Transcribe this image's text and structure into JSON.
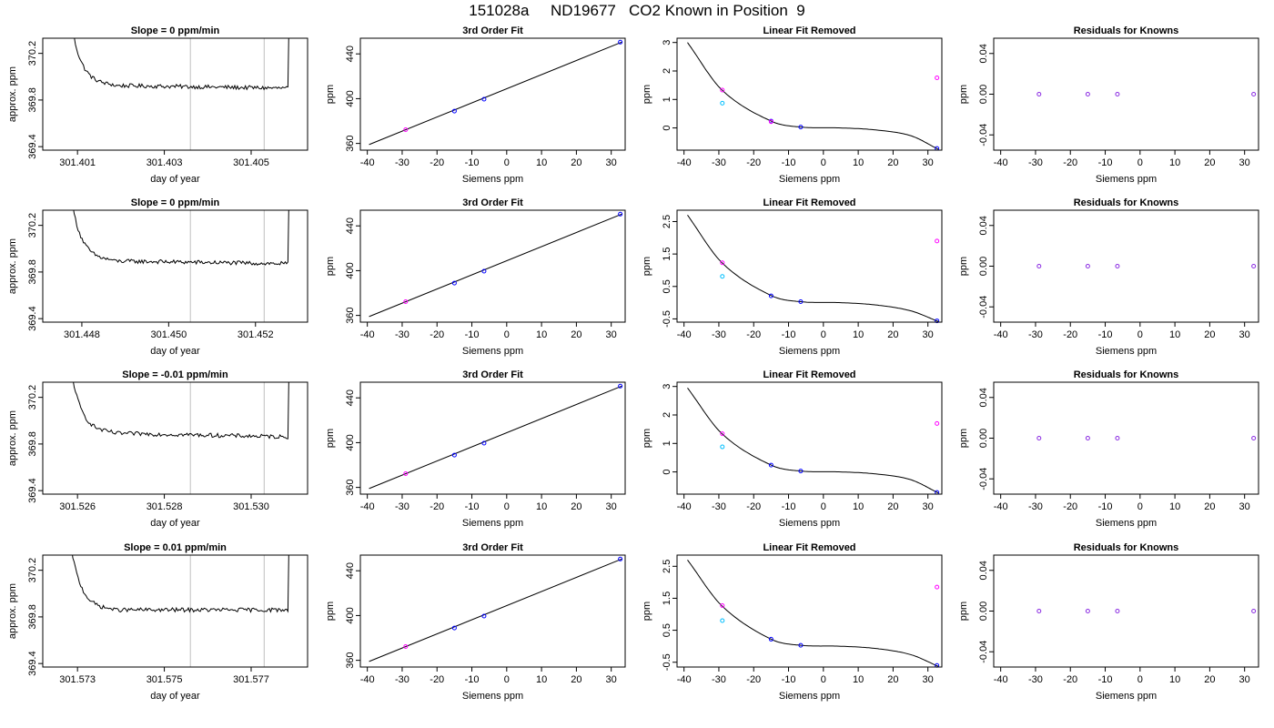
{
  "figure": {
    "title": "151028a     ND19677   CO2 Known in Position  9",
    "colors": {
      "line": "#000000",
      "vline": "#bebebe",
      "unknown": "#00bfff",
      "known_a": "#ff00ff",
      "known_b": "#0000ff",
      "residual": "#8a2be2"
    }
  },
  "chart_data": [
    {
      "type": "line",
      "row": 0,
      "col": 0,
      "title": "Slope =  0  ppm/min",
      "xlabel": "day of year",
      "ylabel": "approx. ppm",
      "xlim": [
        301.4002,
        301.4063
      ],
      "ylim": [
        369.37,
        370.33
      ],
      "xticks": [
        "301.401",
        "301.403",
        "301.405"
      ],
      "xtick_values": [
        301.401,
        301.403,
        301.405
      ],
      "yticks": [
        "369.4",
        "369.8",
        "370.2"
      ],
      "ytick_values": [
        369.4,
        369.8,
        370.2
      ],
      "vlines": [
        301.4036,
        301.4053
      ],
      "trace_x": [
        301.4008,
        301.406
      ],
      "trace_level": [
        369.93,
        369.9
      ]
    },
    {
      "type": "line",
      "row": 1,
      "col": 0,
      "title": "Slope =  0  ppm/min",
      "xlabel": "day of year",
      "ylabel": "approx. ppm",
      "xlim": [
        301.4471,
        301.4532
      ],
      "ylim": [
        369.37,
        370.33
      ],
      "xticks": [
        "301.448",
        "301.450",
        "301.452"
      ],
      "xtick_values": [
        301.448,
        301.45,
        301.452
      ],
      "yticks": [
        "369.4",
        "369.8",
        "370.2"
      ],
      "ytick_values": [
        369.4,
        369.8,
        370.2
      ],
      "vlines": [
        301.4505,
        301.4522
      ],
      "trace_x": [
        301.4477,
        301.4529
      ],
      "trace_level": [
        369.9,
        369.87
      ]
    },
    {
      "type": "line",
      "row": 2,
      "col": 0,
      "title": "Slope =  -0.01  ppm/min",
      "xlabel": "day of year",
      "ylabel": "approx. ppm",
      "xlim": [
        301.5252,
        301.5313
      ],
      "ylim": [
        369.37,
        370.33
      ],
      "xticks": [
        "301.526",
        "301.528",
        "301.530"
      ],
      "xtick_values": [
        301.526,
        301.528,
        301.53
      ],
      "yticks": [
        "369.4",
        "369.8",
        "370.2"
      ],
      "ytick_values": [
        369.4,
        369.8,
        370.2
      ],
      "vlines": [
        301.5286,
        301.5303
      ],
      "trace_x": [
        301.5258,
        301.531
      ],
      "trace_level": [
        369.9,
        369.86
      ]
    },
    {
      "type": "line",
      "row": 3,
      "col": 0,
      "title": "Slope =  0.01  ppm/min",
      "xlabel": "day of year",
      "ylabel": "approx. ppm",
      "xlim": [
        301.5722,
        301.5783
      ],
      "ylim": [
        369.37,
        370.33
      ],
      "xticks": [
        "301.573",
        "301.575",
        "301.577"
      ],
      "xtick_values": [
        301.573,
        301.575,
        301.577
      ],
      "yticks": [
        "369.4",
        "369.8",
        "370.2"
      ],
      "ytick_values": [
        369.4,
        369.8,
        370.2
      ],
      "vlines": [
        301.5756,
        301.5773
      ],
      "trace_x": [
        301.5728,
        301.578
      ],
      "trace_level": [
        369.86,
        369.86
      ]
    },
    {
      "type": "scatter",
      "row": 0,
      "col": 1,
      "title": "3rd Order Fit",
      "xlabel": "Siemens ppm",
      "ylabel": "ppm",
      "xlim": [
        -42,
        34
      ],
      "ylim": [
        354,
        454
      ],
      "xticks": [
        "-40",
        "-30",
        "-20",
        "-10",
        "0",
        "10",
        "20",
        "30"
      ],
      "xtick_values": [
        -40,
        -30,
        -20,
        -10,
        0,
        10,
        20,
        30
      ],
      "yticks": [
        "360",
        "400",
        "440"
      ],
      "ytick_values": [
        360,
        400,
        440
      ],
      "fit_x": [
        -39.5,
        33
      ],
      "fit_y": [
        359,
        450.5
      ],
      "points": [
        {
          "x": -29,
          "y": 372.3,
          "color": "known_a"
        },
        {
          "x": -15,
          "y": 388.9,
          "color": "known_b"
        },
        {
          "x": -6.5,
          "y": 399.5,
          "color": "known_b"
        },
        {
          "x": 32.6,
          "y": 450.5,
          "color": "known_b"
        }
      ]
    },
    {
      "type": "scatter",
      "row": 1,
      "col": 1,
      "title": "3rd Order Fit",
      "xlabel": "Siemens ppm",
      "ylabel": "ppm",
      "xlim": [
        -42,
        34
      ],
      "ylim": [
        354,
        454
      ],
      "xticks": [
        "-40",
        "-30",
        "-20",
        "-10",
        "0",
        "10",
        "20",
        "30"
      ],
      "xtick_values": [
        -40,
        -30,
        -20,
        -10,
        0,
        10,
        20,
        30
      ],
      "yticks": [
        "360",
        "400",
        "440"
      ],
      "ytick_values": [
        360,
        400,
        440
      ],
      "fit_x": [
        -39.5,
        33
      ],
      "fit_y": [
        359,
        450.5
      ],
      "points": [
        {
          "x": -29,
          "y": 372.3,
          "color": "known_a"
        },
        {
          "x": -15,
          "y": 388.9,
          "color": "known_b"
        },
        {
          "x": -6.5,
          "y": 399.5,
          "color": "known_b"
        },
        {
          "x": 32.6,
          "y": 450.5,
          "color": "known_b"
        }
      ]
    },
    {
      "type": "scatter",
      "row": 2,
      "col": 1,
      "title": "3rd Order Fit",
      "xlabel": "Siemens ppm",
      "ylabel": "ppm",
      "xlim": [
        -42,
        34
      ],
      "ylim": [
        354,
        454
      ],
      "xticks": [
        "-40",
        "-30",
        "-20",
        "-10",
        "0",
        "10",
        "20",
        "30"
      ],
      "xtick_values": [
        -40,
        -30,
        -20,
        -10,
        0,
        10,
        20,
        30
      ],
      "yticks": [
        "360",
        "400",
        "440"
      ],
      "ytick_values": [
        360,
        400,
        440
      ],
      "fit_x": [
        -39.5,
        33
      ],
      "fit_y": [
        359,
        450.5
      ],
      "points": [
        {
          "x": -29,
          "y": 372.3,
          "color": "known_a"
        },
        {
          "x": -15,
          "y": 388.9,
          "color": "known_b"
        },
        {
          "x": -6.5,
          "y": 399.5,
          "color": "known_b"
        },
        {
          "x": 32.6,
          "y": 450.5,
          "color": "known_b"
        }
      ]
    },
    {
      "type": "scatter",
      "row": 3,
      "col": 1,
      "title": "3rd Order Fit",
      "xlabel": "Siemens ppm",
      "ylabel": "ppm",
      "xlim": [
        -42,
        34
      ],
      "ylim": [
        354,
        454
      ],
      "xticks": [
        "-40",
        "-30",
        "-20",
        "-10",
        "0",
        "10",
        "20",
        "30"
      ],
      "xtick_values": [
        -40,
        -30,
        -20,
        -10,
        0,
        10,
        20,
        30
      ],
      "yticks": [
        "360",
        "400",
        "440"
      ],
      "ytick_values": [
        360,
        400,
        440
      ],
      "fit_x": [
        -39.5,
        33
      ],
      "fit_y": [
        359,
        450.5
      ],
      "points": [
        {
          "x": -29,
          "y": 372.3,
          "color": "known_a"
        },
        {
          "x": -15,
          "y": 388.9,
          "color": "known_b"
        },
        {
          "x": -6.5,
          "y": 399.5,
          "color": "known_b"
        },
        {
          "x": 32.6,
          "y": 450.5,
          "color": "known_b"
        }
      ]
    },
    {
      "type": "scatter",
      "row": 0,
      "col": 2,
      "title": "Linear Fit Removed",
      "xlabel": "Siemens ppm",
      "ylabel": "ppm",
      "xlim": [
        -42,
        34
      ],
      "ylim": [
        -0.78,
        3.15
      ],
      "xticks": [
        "-40",
        "-30",
        "-20",
        "-10",
        "0",
        "10",
        "20",
        "30"
      ],
      "xtick_values": [
        -40,
        -30,
        -20,
        -10,
        0,
        10,
        20,
        30
      ],
      "yticks": [
        "0",
        "1",
        "2",
        "3"
      ],
      "ytick_values": [
        0,
        1,
        2,
        3
      ],
      "curve_knots": [
        [
          -39,
          3.0
        ],
        [
          -29,
          1.32
        ],
        [
          -15,
          0.24
        ],
        [
          -6.5,
          0.03
        ],
        [
          5,
          0.0
        ],
        [
          15,
          -0.07
        ],
        [
          25,
          -0.27
        ],
        [
          33,
          -0.75
        ]
      ],
      "points": [
        {
          "x": -29,
          "y": 1.33,
          "color": "known_a"
        },
        {
          "x": -29,
          "y": 0.87,
          "color": "unknown"
        },
        {
          "x": -15,
          "y": 0.24,
          "color": "known_b"
        },
        {
          "x": -15,
          "y": 0.22,
          "color": "known_a"
        },
        {
          "x": -6.5,
          "y": 0.03,
          "color": "known_b"
        },
        {
          "x": 32.6,
          "y": -0.72,
          "color": "known_b"
        },
        {
          "x": 32.6,
          "y": 1.76,
          "color": "known_a"
        }
      ]
    },
    {
      "type": "scatter",
      "row": 1,
      "col": 2,
      "title": "Linear Fit Removed",
      "xlabel": "Siemens ppm",
      "ylabel": "ppm",
      "xlim": [
        -42,
        34
      ],
      "ylim": [
        -0.6,
        2.85
      ],
      "xticks": [
        "-40",
        "-30",
        "-20",
        "-10",
        "0",
        "10",
        "20",
        "30"
      ],
      "xtick_values": [
        -40,
        -30,
        -20,
        -10,
        0,
        10,
        20,
        30
      ],
      "yticks": [
        "-0.5",
        "0.5",
        "1.5",
        "2.5"
      ],
      "ytick_values": [
        -0.5,
        0.5,
        1.5,
        2.5
      ],
      "curve_knots": [
        [
          -39,
          2.7
        ],
        [
          -29,
          1.22
        ],
        [
          -15,
          0.22
        ],
        [
          -6.5,
          0.03
        ],
        [
          5,
          0.0
        ],
        [
          15,
          -0.07
        ],
        [
          25,
          -0.25
        ],
        [
          33,
          -0.58
        ]
      ],
      "points": [
        {
          "x": -29,
          "y": 1.23,
          "color": "known_a"
        },
        {
          "x": -29,
          "y": 0.81,
          "color": "unknown"
        },
        {
          "x": -15,
          "y": 0.21,
          "color": "known_b"
        },
        {
          "x": -6.5,
          "y": 0.03,
          "color": "known_b"
        },
        {
          "x": 32.6,
          "y": -0.56,
          "color": "known_b"
        },
        {
          "x": 32.6,
          "y": 1.9,
          "color": "known_a"
        }
      ]
    },
    {
      "type": "scatter",
      "row": 2,
      "col": 2,
      "title": "Linear Fit Removed",
      "xlabel": "Siemens ppm",
      "ylabel": "ppm",
      "xlim": [
        -42,
        34
      ],
      "ylim": [
        -0.78,
        3.15
      ],
      "xticks": [
        "-40",
        "-30",
        "-20",
        "-10",
        "0",
        "10",
        "20",
        "30"
      ],
      "xtick_values": [
        -40,
        -30,
        -20,
        -10,
        0,
        10,
        20,
        30
      ],
      "yticks": [
        "0",
        "1",
        "2",
        "3"
      ],
      "ytick_values": [
        0,
        1,
        2,
        3
      ],
      "curve_knots": [
        [
          -39,
          2.95
        ],
        [
          -29,
          1.33
        ],
        [
          -15,
          0.24
        ],
        [
          -6.5,
          0.03
        ],
        [
          5,
          0.0
        ],
        [
          15,
          -0.07
        ],
        [
          25,
          -0.27
        ],
        [
          33,
          -0.74
        ]
      ],
      "points": [
        {
          "x": -29,
          "y": 1.34,
          "color": "known_a"
        },
        {
          "x": -29,
          "y": 0.88,
          "color": "unknown"
        },
        {
          "x": -15,
          "y": 0.24,
          "color": "known_b"
        },
        {
          "x": -6.5,
          "y": 0.03,
          "color": "known_b"
        },
        {
          "x": 32.6,
          "y": -0.72,
          "color": "known_b"
        },
        {
          "x": 32.6,
          "y": 1.7,
          "color": "known_a"
        }
      ]
    },
    {
      "type": "scatter",
      "row": 3,
      "col": 2,
      "title": "Linear Fit Removed",
      "xlabel": "Siemens ppm",
      "ylabel": "ppm",
      "xlim": [
        -42,
        34
      ],
      "ylim": [
        -0.65,
        2.85
      ],
      "xticks": [
        "-40",
        "-30",
        "-20",
        "-10",
        "0",
        "10",
        "20",
        "30"
      ],
      "xtick_values": [
        -40,
        -30,
        -20,
        -10,
        0,
        10,
        20,
        30
      ],
      "yticks": [
        "-0.5",
        "0.5",
        "1.5",
        "2.5"
      ],
      "ytick_values": [
        -0.5,
        0.5,
        1.5,
        2.5
      ],
      "curve_knots": [
        [
          -39,
          2.7
        ],
        [
          -29,
          1.25
        ],
        [
          -15,
          0.22
        ],
        [
          -6.5,
          0.03
        ],
        [
          5,
          0.0
        ],
        [
          15,
          -0.07
        ],
        [
          25,
          -0.26
        ],
        [
          33,
          -0.63
        ]
      ],
      "points": [
        {
          "x": -29,
          "y": 1.27,
          "color": "known_a"
        },
        {
          "x": -29,
          "y": 0.8,
          "color": "unknown"
        },
        {
          "x": -15,
          "y": 0.22,
          "color": "known_b"
        },
        {
          "x": -6.5,
          "y": 0.03,
          "color": "known_b"
        },
        {
          "x": 32.6,
          "y": -0.6,
          "color": "known_b"
        },
        {
          "x": 32.6,
          "y": 1.85,
          "color": "known_a"
        }
      ]
    },
    {
      "type": "scatter",
      "row": 0,
      "col": 3,
      "title": "Residuals for Knowns",
      "xlabel": "Siemens ppm",
      "ylabel": "ppm",
      "xlim": [
        -42,
        34
      ],
      "ylim": [
        -0.055,
        0.055
      ],
      "xticks": [
        "-40",
        "-30",
        "-20",
        "-10",
        "0",
        "10",
        "20",
        "30"
      ],
      "xtick_values": [
        -40,
        -30,
        -20,
        -10,
        0,
        10,
        20,
        30
      ],
      "yticks": [
        "-0.04",
        "0.00",
        "0.04"
      ],
      "ytick_values": [
        -0.04,
        0,
        0.04
      ],
      "points": [
        {
          "x": -29,
          "y": 0,
          "color": "residual"
        },
        {
          "x": -15,
          "y": 0,
          "color": "residual"
        },
        {
          "x": -6.5,
          "y": 0,
          "color": "residual"
        },
        {
          "x": 32.6,
          "y": 0,
          "color": "residual"
        }
      ]
    },
    {
      "type": "scatter",
      "row": 1,
      "col": 3,
      "title": "Residuals for Knowns",
      "xlabel": "Siemens ppm",
      "ylabel": "ppm",
      "xlim": [
        -42,
        34
      ],
      "ylim": [
        -0.055,
        0.055
      ],
      "xticks": [
        "-40",
        "-30",
        "-20",
        "-10",
        "0",
        "10",
        "20",
        "30"
      ],
      "xtick_values": [
        -40,
        -30,
        -20,
        -10,
        0,
        10,
        20,
        30
      ],
      "yticks": [
        "-0.04",
        "0.00",
        "0.04"
      ],
      "ytick_values": [
        -0.04,
        0,
        0.04
      ],
      "points": [
        {
          "x": -29,
          "y": 0,
          "color": "residual"
        },
        {
          "x": -15,
          "y": 0,
          "color": "residual"
        },
        {
          "x": -6.5,
          "y": 0,
          "color": "residual"
        },
        {
          "x": 32.6,
          "y": 0,
          "color": "residual"
        }
      ]
    },
    {
      "type": "scatter",
      "row": 2,
      "col": 3,
      "title": "Residuals for Knowns",
      "xlabel": "Siemens ppm",
      "ylabel": "ppm",
      "xlim": [
        -42,
        34
      ],
      "ylim": [
        -0.055,
        0.055
      ],
      "xticks": [
        "-40",
        "-30",
        "-20",
        "-10",
        "0",
        "10",
        "20",
        "30"
      ],
      "xtick_values": [
        -40,
        -30,
        -20,
        -10,
        0,
        10,
        20,
        30
      ],
      "yticks": [
        "-0.04",
        "0.00",
        "0.04"
      ],
      "ytick_values": [
        -0.04,
        0,
        0.04
      ],
      "points": [
        {
          "x": -29,
          "y": 0,
          "color": "residual"
        },
        {
          "x": -15,
          "y": 0,
          "color": "residual"
        },
        {
          "x": -6.5,
          "y": 0,
          "color": "residual"
        },
        {
          "x": 32.6,
          "y": 0,
          "color": "residual"
        }
      ]
    },
    {
      "type": "scatter",
      "row": 3,
      "col": 3,
      "title": "Residuals for Knowns",
      "xlabel": "Siemens ppm",
      "ylabel": "ppm",
      "xlim": [
        -42,
        34
      ],
      "ylim": [
        -0.055,
        0.055
      ],
      "xticks": [
        "-40",
        "-30",
        "-20",
        "-10",
        "0",
        "10",
        "20",
        "30"
      ],
      "xtick_values": [
        -40,
        -30,
        -20,
        -10,
        0,
        10,
        20,
        30
      ],
      "yticks": [
        "-0.04",
        "0.00",
        "0.04"
      ],
      "ytick_values": [
        -0.04,
        0,
        0.04
      ],
      "points": [
        {
          "x": -29,
          "y": 0,
          "color": "residual"
        },
        {
          "x": -15,
          "y": 0,
          "color": "residual"
        },
        {
          "x": -6.5,
          "y": 0,
          "color": "residual"
        },
        {
          "x": 32.6,
          "y": 0,
          "color": "residual"
        }
      ]
    }
  ]
}
